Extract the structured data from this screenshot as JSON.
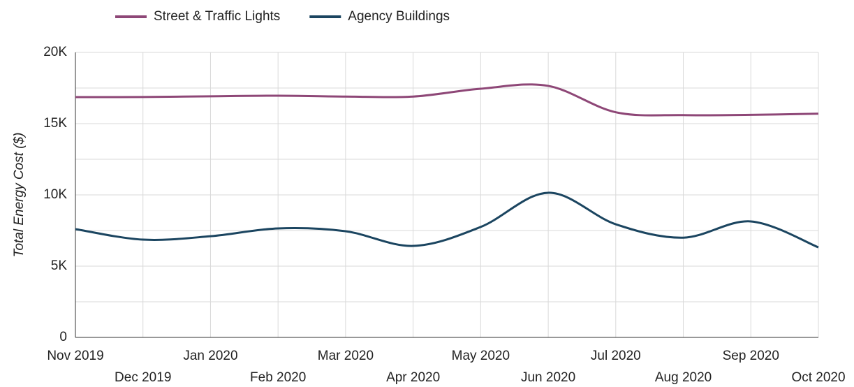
{
  "chart_data": {
    "type": "line",
    "y_label": "Total Energy Cost ($)",
    "x": [
      "Nov 2019",
      "Dec 2019",
      "Jan 2020",
      "Feb 2020",
      "Mar 2020",
      "Apr 2020",
      "May 2020",
      "Jun 2020",
      "Jul 2020",
      "Aug 2020",
      "Sep 2020",
      "Oct 2020"
    ],
    "series": [
      {
        "name": "Street & Traffic Lights",
        "color": "#8e4777",
        "values": [
          16860,
          16870,
          16920,
          16960,
          16900,
          16900,
          17450,
          17650,
          15800,
          15600,
          15620,
          15700
        ]
      },
      {
        "name": "Agency Buildings",
        "color": "#1b4560",
        "values": [
          7600,
          6860,
          7100,
          7650,
          7450,
          6420,
          7750,
          10150,
          7940,
          7000,
          8140,
          6320
        ]
      }
    ],
    "ylim": [
      0,
      20000
    ],
    "yticks": [
      {
        "value": 0,
        "label": "0"
      },
      {
        "value": 5000,
        "label": "5K"
      },
      {
        "value": 10000,
        "label": "10K"
      },
      {
        "value": 15000,
        "label": "15K"
      },
      {
        "value": 20000,
        "label": "20K"
      }
    ],
    "minor_yticks": [
      2500,
      7500,
      12500,
      17500
    ],
    "grid": true,
    "legend": "top"
  }
}
